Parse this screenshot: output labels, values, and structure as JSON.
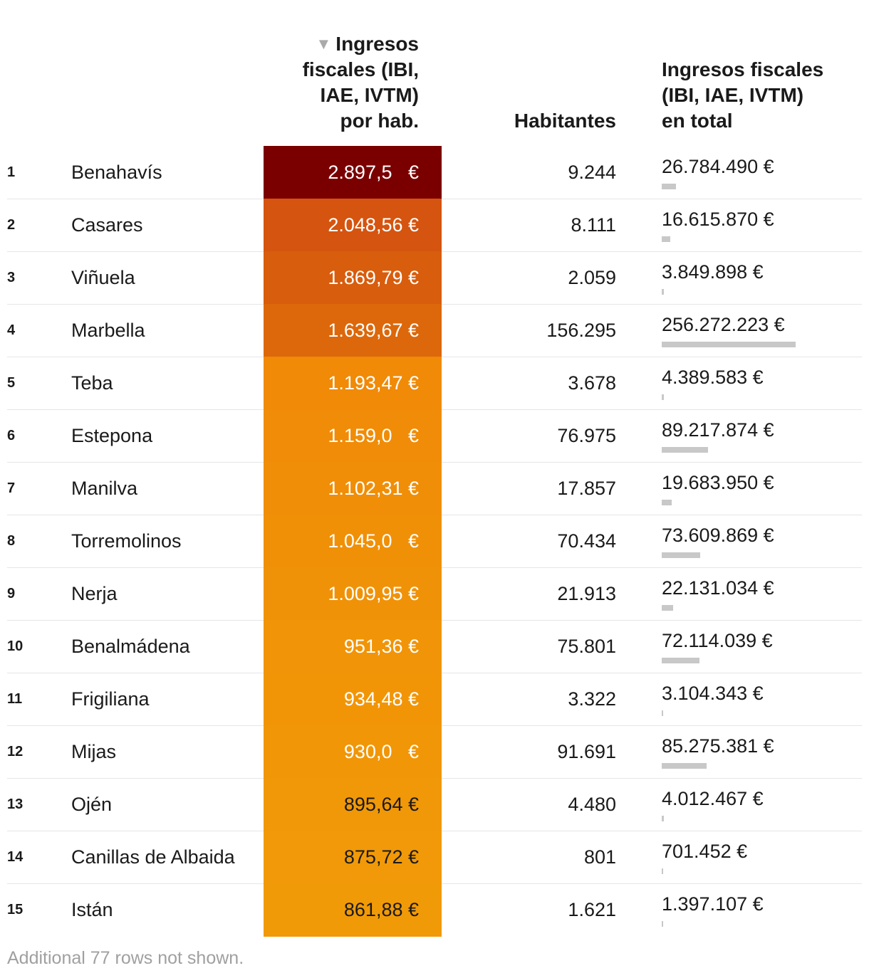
{
  "header": {
    "col_perhab": [
      "Ingresos",
      "fiscales (IBI,",
      "IAE, IVTM)",
      "por hab."
    ],
    "col_hab": "Habitantes",
    "col_total": [
      "Ingresos fiscales",
      "(IBI, IAE, IVTM)",
      "en total"
    ],
    "sort_icon": "sort-descending-icon"
  },
  "chart_data": {
    "type": "table",
    "columns": [
      "",
      "",
      "Ingresos fiscales (IBI, IAE, IVTM) por hab.",
      "Habitantes",
      "Ingresos fiscales (IBI, IAE, IVTM) en total"
    ],
    "sorted_by": "Ingresos fiscales (IBI, IAE, IVTM) por hab.",
    "sort_order": "descending",
    "rows": [
      {
        "rank": "1",
        "name": "Benahavís",
        "perhab_text": "2.897,5   €",
        "perhab": 2897.5,
        "habitantes": "9.244",
        "total_text": "26.784.490 €",
        "total": 26784490,
        "color": "#7a0000",
        "text_color": "#ffffff"
      },
      {
        "rank": "2",
        "name": "Casares",
        "perhab_text": "2.048,56 €",
        "perhab": 2048.56,
        "habitantes": "8.111",
        "total_text": "16.615.870 €",
        "total": 16615870,
        "color": "#d5540f",
        "text_color": "#ffffff"
      },
      {
        "rank": "3",
        "name": "Viñuela",
        "perhab_text": "1.869,79 €",
        "perhab": 1869.79,
        "habitantes": "2.059",
        "total_text": "3.849.898 €",
        "total": 3849898,
        "color": "#d85d0d",
        "text_color": "#ffffff"
      },
      {
        "rank": "4",
        "name": "Marbella",
        "perhab_text": "1.639,67 €",
        "perhab": 1639.67,
        "habitantes": "156.295",
        "total_text": "256.272.223 €",
        "total": 256272223,
        "color": "#dc680b",
        "text_color": "#ffffff"
      },
      {
        "rank": "5",
        "name": "Teba",
        "perhab_text": "1.193,47 €",
        "perhab": 1193.47,
        "habitantes": "3.678",
        "total_text": "4.389.583 €",
        "total": 4389583,
        "color": "#f08a07",
        "text_color": "#ffffff"
      },
      {
        "rank": "6",
        "name": "Estepona",
        "perhab_text": "1.159,0   €",
        "perhab": 1159.0,
        "habitantes": "76.975",
        "total_text": "89.217.874 €",
        "total": 89217874,
        "color": "#f08c07",
        "text_color": "#ffffff"
      },
      {
        "rank": "7",
        "name": "Manilva",
        "perhab_text": "1.102,31 €",
        "perhab": 1102.31,
        "habitantes": "17.857",
        "total_text": "19.683.950 €",
        "total": 19683950,
        "color": "#f08e07",
        "text_color": "#ffffff"
      },
      {
        "rank": "8",
        "name": "Torremolinos",
        "perhab_text": "1.045,0   €",
        "perhab": 1045.0,
        "habitantes": "70.434",
        "total_text": "73.609.869 €",
        "total": 73609869,
        "color": "#f09007",
        "text_color": "#ffffff"
      },
      {
        "rank": "9",
        "name": "Nerja",
        "perhab_text": "1.009,95 €",
        "perhab": 1009.95,
        "habitantes": "21.913",
        "total_text": "22.131.034 €",
        "total": 22131034,
        "color": "#f09207",
        "text_color": "#ffffff"
      },
      {
        "rank": "10",
        "name": "Benalmádena",
        "perhab_text": "951,36 €",
        "perhab": 951.36,
        "habitantes": "75.801",
        "total_text": "72.114.039 €",
        "total": 72114039,
        "color": "#f19407",
        "text_color": "#ffffff"
      },
      {
        "rank": "11",
        "name": "Frigiliana",
        "perhab_text": "934,48 €",
        "perhab": 934.48,
        "habitantes": "3.322",
        "total_text": "3.104.343 €",
        "total": 3104343,
        "color": "#f19507",
        "text_color": "#ffffff"
      },
      {
        "rank": "12",
        "name": "Mijas",
        "perhab_text": "930,0   €",
        "perhab": 930.0,
        "habitantes": "91.691",
        "total_text": "85.275.381 €",
        "total": 85275381,
        "color": "#f19607",
        "text_color": "#ffffff"
      },
      {
        "rank": "13",
        "name": "Ojén",
        "perhab_text": "895,64 €",
        "perhab": 895.64,
        "habitantes": "4.480",
        "total_text": "4.012.467 €",
        "total": 4012467,
        "color": "#f19808",
        "text_color": "#1a1a1a"
      },
      {
        "rank": "14",
        "name": "Canillas de Albaida",
        "perhab_text": "875,72 €",
        "perhab": 875.72,
        "habitantes": "801",
        "total_text": "701.452 €",
        "total": 701452,
        "color": "#f19908",
        "text_color": "#1a1a1a"
      },
      {
        "rank": "15",
        "name": "Istán",
        "perhab_text": "861,88 €",
        "perhab": 861.88,
        "habitantes": "1.621",
        "total_text": "1.397.107 €",
        "total": 1397107,
        "color": "#f19a08",
        "text_color": "#1a1a1a"
      }
    ],
    "total_max": 256272223,
    "footer": "Additional 77 rows not shown."
  }
}
